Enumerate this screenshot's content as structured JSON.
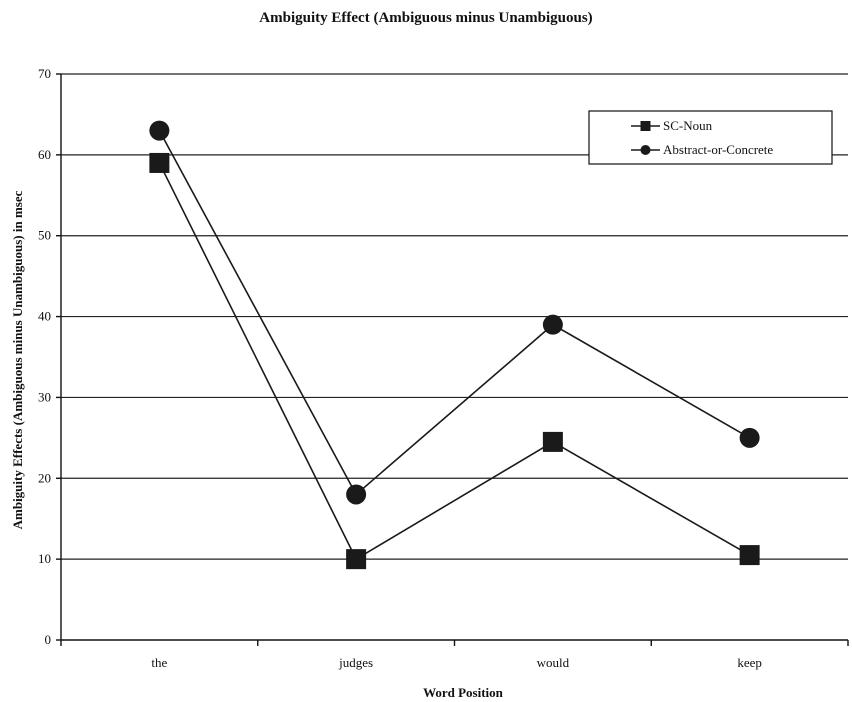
{
  "chart_data": {
    "type": "line",
    "title": "Ambiguity Effect  (Ambiguous minus Unambiguous)",
    "xlabel": "Word Position",
    "ylabel": "Ambiguity Effects (Ambiguous minus Unambiguous) in msec",
    "categories": [
      "the",
      "judges",
      "would",
      "keep"
    ],
    "ylim": [
      0,
      70
    ],
    "yticks": [
      0,
      10,
      20,
      30,
      40,
      50,
      60,
      70
    ],
    "grid": true,
    "legend_position": "top-right",
    "series": [
      {
        "name": "SC-Noun",
        "marker": "square",
        "values": [
          59,
          10,
          24.5,
          10.5
        ]
      },
      {
        "name": "Abstract-or-Concrete",
        "marker": "circle",
        "values": [
          63,
          18,
          39,
          25
        ]
      }
    ],
    "colors": {
      "line": "#1a1a1a",
      "marker": "#1a1a1a",
      "grid": "#222222"
    }
  }
}
